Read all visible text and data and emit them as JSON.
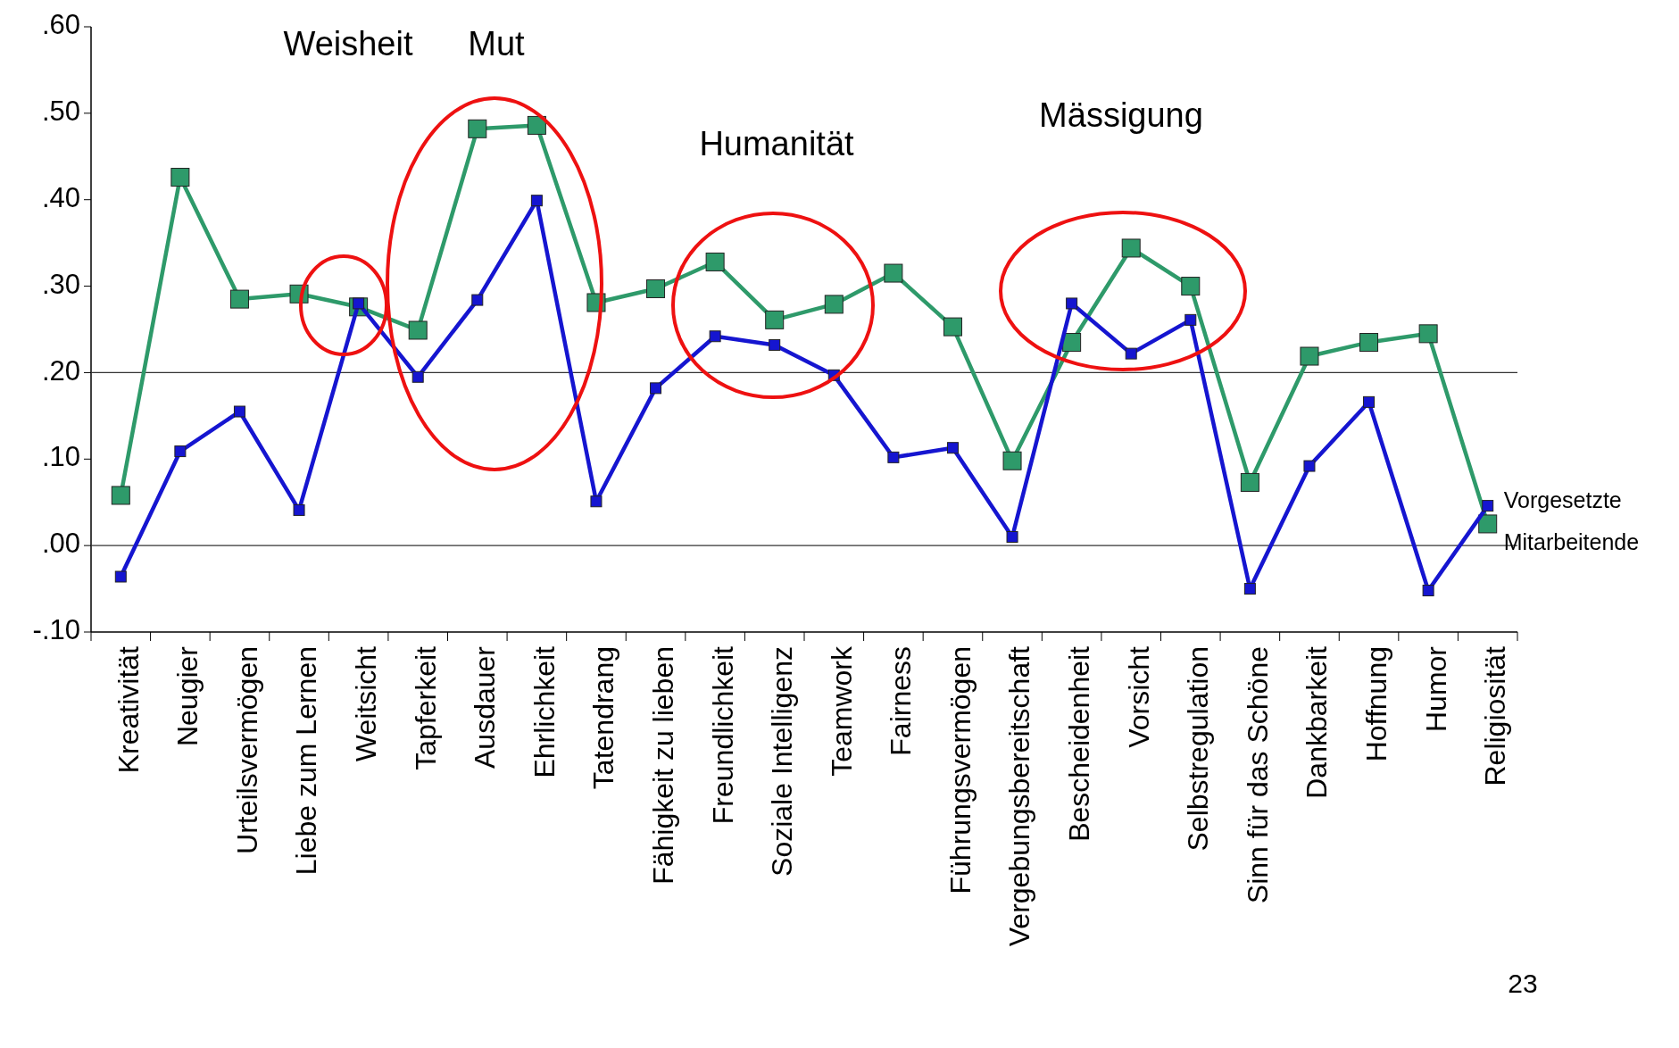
{
  "chart_data": {
    "type": "line",
    "categories": [
      "Kreativität",
      "Neugier",
      "Urteilsvermögen",
      "Liebe zum Lernen",
      "Weitsicht",
      "Tapferkeit",
      "Ausdauer",
      "Ehrlichkeit",
      "Tatendrang",
      "Fähigkeit zu lieben",
      "Freundlichkeit",
      "Soziale Intelligenz",
      "Teamwork",
      "Fairness",
      "Führungsvermögen",
      "Vergebungsbereitschaft",
      "Bescheidenheit",
      "Vorsicht",
      "Selbstregulation",
      "Sinn für das Schöne",
      "Dankbarkeit",
      "Hoffnung",
      "Humor",
      "Religiosität"
    ],
    "series": [
      {
        "name": "Mitarbeitende",
        "color": "#2e9a6a",
        "values": [
          0.058,
          0.426,
          0.285,
          0.291,
          0.276,
          0.249,
          0.482,
          0.486,
          0.281,
          0.297,
          0.328,
          0.261,
          0.279,
          0.315,
          0.253,
          0.098,
          0.235,
          0.344,
          0.3,
          0.073,
          0.219,
          0.235,
          0.245,
          0.025
        ]
      },
      {
        "name": "Vorgesetzte",
        "color": "#1515d0",
        "values": [
          -0.036,
          0.109,
          0.155,
          0.041,
          0.28,
          0.195,
          0.284,
          0.399,
          0.051,
          0.182,
          0.242,
          0.232,
          0.197,
          0.102,
          0.113,
          0.01,
          0.28,
          0.222,
          0.261,
          -0.05,
          0.092,
          0.166,
          -0.052,
          0.046
        ]
      }
    ],
    "ylim": [
      -0.1,
      0.6
    ],
    "yticks": [
      {
        "value": 0.6,
        "label": ".60"
      },
      {
        "value": 0.5,
        "label": ".50"
      },
      {
        "value": 0.4,
        "label": ".40"
      },
      {
        "value": 0.3,
        "label": ".30"
      },
      {
        "value": 0.2,
        "label": ".20"
      },
      {
        "value": 0.1,
        "label": ".10"
      },
      {
        "value": 0,
        "label": ".00"
      },
      {
        "value": -0.1,
        "label": "-.10"
      }
    ],
    "ref_lines": [
      {
        "axis": "y",
        "value": 0,
        "color": "#333333"
      },
      {
        "axis": "y",
        "value": 0.2,
        "color": "#333333"
      }
    ],
    "marker": "square",
    "line_style": "solid",
    "annotations": [
      "Weisheit",
      "Mut",
      "Humanität",
      "Mässigung",
      "23"
    ]
  }
}
